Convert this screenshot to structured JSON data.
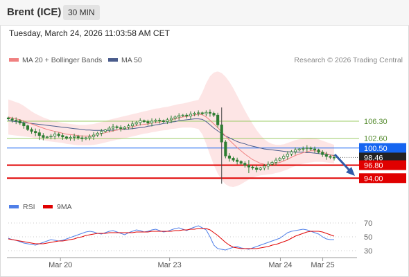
{
  "header": {
    "instrument": "Brent (ICE)",
    "interval": "30 MIN",
    "datetime": "Tuesday, March 24, 2026 11:03:58 AM CET"
  },
  "legend": {
    "ma20_label": "MA 20 + Bollinger Bands",
    "ma50_label": "MA 50",
    "copyright": "Research © 2026 Trading Central",
    "rsi_label": "RSI",
    "rsi_ma_label": "9MA"
  },
  "colors": {
    "ma20": "#f08080",
    "ma50": "#4a5c8c",
    "bollinger_fill": "#fde0e0",
    "candle": "#2e7d32",
    "resistance_line": "#9ccc65",
    "resistance_text": "#558b2f",
    "pivot": "#1565f0",
    "support": "#e00000",
    "arrow": "#2f5aa8",
    "rsi": "#4f7fe8",
    "rsi_ma": "#e00000"
  },
  "chart_data": [
    {
      "type": "candlestick",
      "title": "Brent (ICE) 30 MIN",
      "x_tick_labels": [
        "Mar 20",
        "Mar 23",
        "Mar 24",
        "Mar 25"
      ],
      "y_range": [
        91.5,
        117.5
      ],
      "grid": false,
      "legend_position": "top-left",
      "price_levels": [
        {
          "label": "106.30",
          "value": 106.3,
          "kind": "resistance"
        },
        {
          "label": "102.60",
          "value": 102.6,
          "kind": "resistance"
        },
        {
          "label": "100.50",
          "value": 100.5,
          "kind": "pivot"
        },
        {
          "label": "98.46",
          "value": 98.46,
          "kind": "last"
        },
        {
          "label": "96.80",
          "value": 96.8,
          "kind": "support"
        },
        {
          "label": "94.00",
          "value": 94.0,
          "kind": "support"
        }
      ],
      "closes": [
        106.8,
        106.5,
        106.4,
        105.9,
        105.3,
        104.5,
        104.1,
        103.8,
        103.2,
        102.8,
        102.9,
        103.1,
        103.5,
        103.2,
        102.9,
        102.6,
        102.8,
        103.0,
        102.7,
        102.5,
        102.7,
        103.0,
        103.3,
        103.7,
        104.1,
        104.4,
        104.8,
        105.1,
        104.9,
        104.7,
        105.0,
        105.3,
        105.7,
        106.0,
        106.4,
        106.2,
        105.9,
        106.3,
        106.5,
        106.4,
        106.2,
        106.6,
        106.9,
        107.2,
        107.5,
        107.6,
        107.4,
        107.8,
        108.0,
        108.1,
        107.9,
        108.2,
        108.0,
        107.6,
        105.5,
        101.8,
        98.8,
        98.3,
        97.9,
        97.6,
        97.2,
        96.8,
        96.4,
        96.2,
        95.9,
        96.2,
        96.6,
        97.0,
        97.4,
        97.9,
        98.3,
        98.7,
        99.2,
        99.7,
        100.1,
        100.3,
        100.4,
        100.5,
        100.3,
        100.1,
        99.6,
        99.1,
        98.7,
        98.5,
        98.46
      ],
      "ma20": [
        107.2,
        107.0,
        106.8,
        106.6,
        106.3,
        106.0,
        105.7,
        105.4,
        105.1,
        104.8,
        104.5,
        104.3,
        104.1,
        103.9,
        103.7,
        103.5,
        103.4,
        103.3,
        103.2,
        103.1,
        103.1,
        103.1,
        103.2,
        103.4,
        103.6,
        103.8,
        104.0,
        104.2,
        104.4,
        104.5,
        104.7,
        104.9,
        105.1,
        105.3,
        105.5,
        105.6,
        105.7,
        105.9,
        106.0,
        106.1,
        106.3,
        106.4,
        106.6,
        106.8,
        107.0,
        107.2,
        107.3,
        107.5,
        107.6,
        107.8,
        107.7,
        107.2,
        106.5,
        105.7,
        104.9,
        104.0,
        103.1,
        102.2,
        101.4,
        100.6,
        99.9,
        99.2,
        98.6,
        98.0,
        97.6,
        97.2,
        97.0,
        96.9,
        97.0,
        97.2,
        97.4,
        97.7,
        98.1,
        98.5,
        98.9,
        99.2,
        99.5,
        99.7,
        99.9,
        99.9,
        99.8,
        99.6,
        99.3,
        99.0,
        98.8
      ],
      "ma50": [
        106.4,
        106.3,
        106.2,
        106.1,
        106.0,
        105.9,
        105.8,
        105.7,
        105.6,
        105.5,
        105.4,
        105.3,
        105.2,
        105.1,
        105.0,
        104.9,
        104.8,
        104.7,
        104.6,
        104.5,
        104.4,
        104.4,
        104.3,
        104.3,
        104.3,
        104.3,
        104.3,
        104.4,
        104.4,
        104.5,
        104.5,
        104.6,
        104.7,
        104.8,
        104.9,
        105.0,
        105.2,
        105.3,
        105.5,
        105.6,
        105.8,
        105.9,
        106.1,
        106.2,
        106.4,
        106.5,
        106.6,
        106.7,
        106.8,
        106.8,
        106.7,
        106.2,
        105.5,
        104.8,
        104.2,
        103.6,
        103.1,
        102.7,
        102.3,
        101.9,
        101.6,
        101.4,
        101.1,
        100.9,
        100.7,
        100.5,
        100.3,
        100.2,
        100.1,
        100.0,
        99.9,
        99.8,
        99.7,
        99.7,
        99.6,
        99.6,
        99.6,
        99.5,
        99.5,
        99.4,
        99.3,
        99.2,
        99.1,
        99.0,
        98.9
      ],
      "bollinger_upper": [
        111.0,
        110.7,
        110.4,
        110.1,
        109.6,
        109.0,
        108.4,
        107.9,
        107.5,
        107.1,
        106.8,
        106.5,
        106.3,
        106.1,
        105.9,
        105.8,
        105.7,
        105.6,
        105.5,
        105.5,
        105.5,
        105.6,
        105.7,
        105.9,
        106.1,
        106.3,
        106.6,
        106.8,
        107.0,
        107.2,
        107.4,
        107.6,
        107.8,
        108.0,
        108.2,
        108.4,
        108.6,
        108.8,
        109.0,
        109.1,
        109.3,
        109.4,
        109.6,
        109.8,
        110.0,
        110.1,
        110.3,
        110.5,
        110.7,
        110.9,
        112.5,
        114.5,
        116.0,
        116.8,
        117.0,
        116.7,
        115.9,
        114.8,
        113.4,
        111.8,
        110.2,
        108.6,
        107.1,
        105.7,
        104.4,
        103.3,
        102.4,
        101.8,
        101.4,
        101.2,
        101.2,
        101.3,
        101.6,
        101.9,
        102.2,
        102.4,
        102.6,
        102.7,
        102.7,
        102.6,
        102.4,
        102.1,
        101.8,
        101.5,
        101.2
      ],
      "bollinger_lower": [
        103.4,
        103.3,
        103.2,
        103.1,
        103.0,
        102.9,
        102.8,
        102.6,
        102.4,
        102.2,
        102.0,
        101.9,
        101.8,
        101.7,
        101.6,
        101.4,
        101.3,
        101.2,
        101.1,
        101.1,
        101.1,
        101.1,
        101.2,
        101.3,
        101.5,
        101.7,
        101.9,
        102.1,
        102.3,
        102.4,
        102.6,
        102.8,
        103.0,
        103.2,
        103.4,
        103.6,
        103.7,
        103.9,
        104.0,
        104.2,
        104.3,
        104.4,
        104.6,
        104.7,
        104.8,
        104.9,
        104.9,
        104.9,
        104.8,
        104.6,
        103.5,
        101.4,
        99.0,
        96.8,
        95.0,
        93.6,
        92.7,
        92.2,
        92.1,
        92.3,
        92.7,
        93.2,
        93.7,
        94.1,
        94.4,
        94.6,
        94.7,
        94.8,
        94.9,
        95.1,
        95.3,
        95.6,
        95.9,
        96.3,
        96.6,
        96.9,
        97.1,
        97.3,
        97.4,
        97.5,
        97.5,
        97.5,
        97.4,
        97.3,
        97.2
      ]
    },
    {
      "type": "line",
      "title": "RSI",
      "y_ticks": [
        70,
        50,
        30
      ],
      "y_range": [
        20,
        80
      ],
      "series": [
        {
          "name": "RSI",
          "values": [
            48,
            46,
            45,
            43,
            41,
            40,
            39,
            38,
            40,
            42,
            44,
            46,
            45,
            44,
            45,
            47,
            49,
            51,
            53,
            55,
            57,
            58,
            57,
            55,
            54,
            56,
            58,
            59,
            57,
            55,
            53,
            56,
            58,
            60,
            59,
            57,
            58,
            60,
            61,
            59,
            57,
            58,
            60,
            62,
            63,
            61,
            59,
            62,
            64,
            66,
            63,
            60,
            50,
            38,
            33,
            32,
            31,
            33,
            35,
            36,
            34,
            33,
            32,
            34,
            36,
            38,
            40,
            42,
            44,
            46,
            48,
            52,
            56,
            58,
            59,
            60,
            61,
            60,
            58,
            56,
            54,
            50,
            47,
            46,
            46
          ]
        },
        {
          "name": "9MA",
          "values": [
            47,
            46,
            45,
            44,
            43,
            42,
            41,
            40,
            40,
            40,
            41,
            42,
            43,
            44,
            44,
            45,
            46,
            47,
            49,
            50,
            52,
            53,
            54,
            55,
            55,
            55,
            56,
            56,
            56,
            56,
            56,
            56,
            56,
            57,
            57,
            57,
            57,
            58,
            58,
            58,
            58,
            58,
            58,
            59,
            59,
            60,
            60,
            61,
            61,
            62,
            62,
            62,
            60,
            56,
            52,
            47,
            42,
            38,
            35,
            34,
            33,
            33,
            33,
            33,
            33,
            34,
            35,
            36,
            38,
            39,
            41,
            43,
            45,
            48,
            51,
            53,
            55,
            57,
            58,
            58,
            58,
            57,
            55,
            53,
            51
          ]
        }
      ]
    }
  ]
}
